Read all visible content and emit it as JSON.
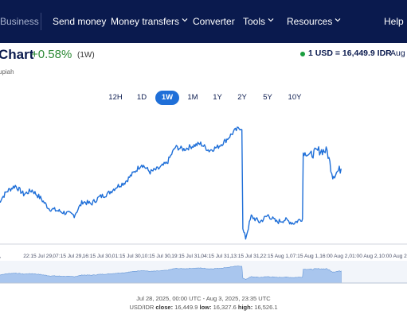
{
  "nav": {
    "business": "Business",
    "send_money": "Send money",
    "money_transfers": "Money transfers",
    "converter": "Converter",
    "tools": "Tools",
    "resources": "Resources",
    "help": "Help"
  },
  "header": {
    "title": "Chart",
    "change": "+0.58%",
    "change_range": "(1W)",
    "subtitle": "upiah",
    "rate": "1 USD = 16,449.9 IDR",
    "rate_date": "Aug"
  },
  "tabs": [
    {
      "label": "12H",
      "active": false
    },
    {
      "label": "1D",
      "active": false
    },
    {
      "label": "1W",
      "active": true
    },
    {
      "label": "1M",
      "active": false
    },
    {
      "label": "1Y",
      "active": false
    },
    {
      "label": "2Y",
      "active": false
    },
    {
      "label": "5Y",
      "active": false
    },
    {
      "label": "10Y",
      "active": false
    }
  ],
  "footer": {
    "range_text": "Jul 28, 2025, 00:00 UTC - Aug 3, 2025, 23:35 UTC",
    "pair": "USD/IDR",
    "close_label": "close:",
    "close_value": "16,449.9",
    "low_label": "low:",
    "low_value": "16,327.6",
    "high_label": "high:",
    "high_value": "16,526.1"
  },
  "colors": {
    "nav_bg": "#0a1a4e",
    "line": "#1f6fd8",
    "positive": "#2e8b37",
    "navigator_fill": "#a9c6ee"
  },
  "chart_data": {
    "type": "line",
    "series": [
      {
        "name": "USD/IDR",
        "points": [
          [
            "Jul 28 22:00",
            16390
          ],
          [
            "Jul 29 01:00",
            16410
          ],
          [
            "Jul 29 04:00",
            16420
          ],
          [
            "Jul 29 07:00",
            16405
          ],
          [
            "Jul 29 10:00",
            16412
          ],
          [
            "Jul 29 13:00",
            16398
          ],
          [
            "Jul 29 16:00",
            16380
          ],
          [
            "Jul 29 19:00",
            16376
          ],
          [
            "Jul 29 22:00",
            16372
          ],
          [
            "Jul 30 01:00",
            16368
          ],
          [
            "Jul 30 04:00",
            16392
          ],
          [
            "Jul 30 07:00",
            16388
          ],
          [
            "Jul 30 10:00",
            16400
          ],
          [
            "Jul 30 13:00",
            16406
          ],
          [
            "Jul 30 16:00",
            16418
          ],
          [
            "Jul 30 19:00",
            16426
          ],
          [
            "Jul 30 22:00",
            16442
          ],
          [
            "Jul 31 01:00",
            16458
          ],
          [
            "Jul 31 04:00",
            16444
          ],
          [
            "Jul 31 07:00",
            16450
          ],
          [
            "Jul 31 10:00",
            16460
          ],
          [
            "Jul 31 13:00",
            16488
          ],
          [
            "Jul 31 16:00",
            16484
          ],
          [
            "Jul 31 19:00",
            16490
          ],
          [
            "Jul 31 22:00",
            16494
          ],
          [
            "Aug 1 01:00",
            16482
          ],
          [
            "Aug 1 04:00",
            16488
          ],
          [
            "Aug 1 07:00",
            16500
          ],
          [
            "Aug 1 10:00",
            16516
          ],
          [
            "Aug 1 12:00",
            16522
          ],
          [
            "Aug 1 13:00",
            16342
          ],
          [
            "Aug 1 14:00",
            16328
          ],
          [
            "Aug 1 16:00",
            16366
          ],
          [
            "Aug 1 19:00",
            16356
          ],
          [
            "Aug 1 22:00",
            16368
          ],
          [
            "Aug 2 01:00",
            16356
          ],
          [
            "Aug 2 04:00",
            16360
          ],
          [
            "Aug 2 07:00",
            16354
          ],
          [
            "Aug 2 10:00",
            16362
          ],
          [
            "Aug 2 10:30",
            16478
          ],
          [
            "Aug 2 13:00",
            16474
          ],
          [
            "Aug 2 16:00",
            16482
          ],
          [
            "Aug 2 19:00",
            16481
          ],
          [
            "Aug 2 21:00",
            16438
          ],
          [
            "Aug 2 23:00",
            16446
          ],
          [
            "Aug 3 00:00",
            16449.9
          ]
        ]
      }
    ],
    "x_tick_labels": [
      "28,",
      "22:15 Jul 29,",
      "07:15 Jul 29,",
      "16:15 Jul 30,",
      "01:15 Jul 30,",
      "10:15 Jul 30,",
      "19:15 Jul 31,",
      "04:15 Jul 31,",
      "13:15 Jul 31,",
      "22:15 Aug 1,",
      "07:15 Aug 1,",
      "16:00 Aug 2,",
      "01:00 Aug 2,",
      "10:00 Aug 2,",
      "19:00 Aug"
    ],
    "ylim": [
      16320,
      16530
    ],
    "grid": false,
    "legend": "none"
  }
}
